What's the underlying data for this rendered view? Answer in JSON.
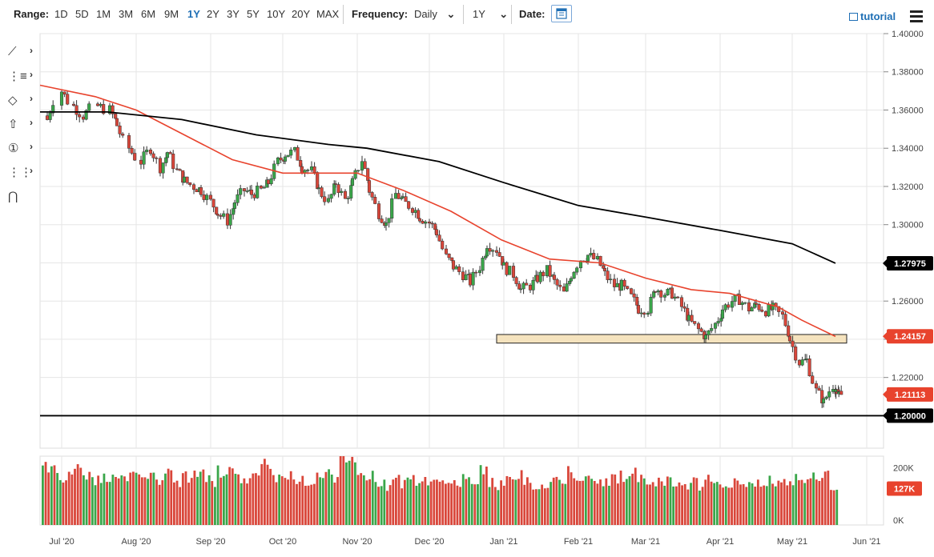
{
  "toolbar": {
    "range_label": "Range:",
    "ranges": [
      "1D",
      "5D",
      "1M",
      "3M",
      "6M",
      "9M",
      "1Y",
      "2Y",
      "3Y",
      "5Y",
      "10Y",
      "20Y",
      "MAX"
    ],
    "active_range": "1Y",
    "frequency_label": "Frequency:",
    "frequency_value": "Daily",
    "period_value": "1Y",
    "date_label": "Date:",
    "tutorial_label": "tutorial"
  },
  "side_tools": [
    "line-tool-icon",
    "fibonacci-tool-icon",
    "shape-tool-icon",
    "arrow-tool-icon",
    "annotation-tool-icon",
    "measure-tool-icon",
    "magnet-tool-icon"
  ],
  "side_tool_glyphs": [
    "⟋",
    "⋮≡",
    "◇",
    "⇧",
    "①",
    "⋮⋮",
    "⋂"
  ],
  "chart_data": {
    "type": "candlestick",
    "price_axis": {
      "ticks": [
        "1.40000",
        "1.38000",
        "1.36000",
        "1.34000",
        "1.32000",
        "1.30000",
        "1.28000",
        "1.26000",
        "1.24000",
        "1.22000",
        "1.20000"
      ],
      "tick_values": [
        1.4,
        1.38,
        1.36,
        1.34,
        1.32,
        1.3,
        1.28,
        1.26,
        1.24,
        1.22,
        1.2
      ],
      "range": [
        1.183,
        1.4
      ]
    },
    "date_axis": {
      "labels": [
        "Jul '20",
        "Aug '20",
        "Sep '20",
        "Oct '20",
        "Nov '20",
        "Dec '20",
        "Jan '21",
        "Feb '21",
        "Mar '21",
        "Apr '21",
        "May '21",
        "Jun '21"
      ],
      "range": [
        "2020-06-22",
        "2021-06-08"
      ]
    },
    "price_tags": [
      {
        "text": "1.27975",
        "value": 1.27975,
        "color": "#000000"
      },
      {
        "text": "1.24157",
        "value": 1.24157,
        "color": "#e8432d"
      },
      {
        "text": "1.21113",
        "value": 1.21113,
        "color": "#e8432d"
      },
      {
        "text": "1.20000",
        "value": 1.2,
        "color": "#000000"
      }
    ],
    "horizontal_line": 1.2,
    "support_zone": {
      "from_date": "2020-12-29",
      "to_date": "2021-05-19",
      "low": 1.238,
      "high": 1.2425,
      "color": "#f5e3be"
    },
    "closes": [
      {
        "date": "2020-06-25",
        "close": 1.355
      },
      {
        "date": "2020-07-01",
        "close": 1.37
      },
      {
        "date": "2020-07-06",
        "close": 1.362
      },
      {
        "date": "2020-07-10",
        "close": 1.357
      },
      {
        "date": "2020-07-16",
        "close": 1.362
      },
      {
        "date": "2020-07-21",
        "close": 1.36
      },
      {
        "date": "2020-07-24",
        "close": 1.352
      },
      {
        "date": "2020-07-29",
        "close": 1.34
      },
      {
        "date": "2020-08-03",
        "close": 1.333
      },
      {
        "date": "2020-08-07",
        "close": 1.34
      },
      {
        "date": "2020-08-11",
        "close": 1.33
      },
      {
        "date": "2020-08-14",
        "close": 1.338
      },
      {
        "date": "2020-08-18",
        "close": 1.328
      },
      {
        "date": "2020-08-21",
        "close": 1.323
      },
      {
        "date": "2020-08-25",
        "close": 1.32
      },
      {
        "date": "2020-08-28",
        "close": 1.318
      },
      {
        "date": "2020-09-01",
        "close": 1.312
      },
      {
        "date": "2020-09-04",
        "close": 1.306
      },
      {
        "date": "2020-09-08",
        "close": 1.302
      },
      {
        "date": "2020-09-11",
        "close": 1.312
      },
      {
        "date": "2020-09-15",
        "close": 1.318
      },
      {
        "date": "2020-09-18",
        "close": 1.316
      },
      {
        "date": "2020-09-22",
        "close": 1.318
      },
      {
        "date": "2020-09-25",
        "close": 1.322
      },
      {
        "date": "2020-09-29",
        "close": 1.333
      },
      {
        "date": "2020-10-02",
        "close": 1.337
      },
      {
        "date": "2020-10-06",
        "close": 1.338
      },
      {
        "date": "2020-10-09",
        "close": 1.33
      },
      {
        "date": "2020-10-13",
        "close": 1.328
      },
      {
        "date": "2020-10-16",
        "close": 1.318
      },
      {
        "date": "2020-10-20",
        "close": 1.312
      },
      {
        "date": "2020-10-23",
        "close": 1.322
      },
      {
        "date": "2020-10-27",
        "close": 1.313
      },
      {
        "date": "2020-10-30",
        "close": 1.322
      },
      {
        "date": "2020-11-03",
        "close": 1.334
      },
      {
        "date": "2020-11-06",
        "close": 1.318
      },
      {
        "date": "2020-11-10",
        "close": 1.306
      },
      {
        "date": "2020-11-13",
        "close": 1.3
      },
      {
        "date": "2020-11-17",
        "close": 1.316
      },
      {
        "date": "2020-11-20",
        "close": 1.312
      },
      {
        "date": "2020-11-24",
        "close": 1.309
      },
      {
        "date": "2020-11-27",
        "close": 1.304
      },
      {
        "date": "2020-12-01",
        "close": 1.301
      },
      {
        "date": "2020-12-04",
        "close": 1.296
      },
      {
        "date": "2020-12-08",
        "close": 1.283
      },
      {
        "date": "2020-12-11",
        "close": 1.278
      },
      {
        "date": "2020-12-15",
        "close": 1.274
      },
      {
        "date": "2020-12-18",
        "close": 1.27
      },
      {
        "date": "2020-12-22",
        "close": 1.278
      },
      {
        "date": "2020-12-25",
        "close": 1.29
      },
      {
        "date": "2020-12-29",
        "close": 1.287
      },
      {
        "date": "2021-01-01",
        "close": 1.278
      },
      {
        "date": "2021-01-05",
        "close": 1.274
      },
      {
        "date": "2021-01-08",
        "close": 1.266
      },
      {
        "date": "2021-01-12",
        "close": 1.268
      },
      {
        "date": "2021-01-15",
        "close": 1.272
      },
      {
        "date": "2021-01-19",
        "close": 1.276
      },
      {
        "date": "2021-01-22",
        "close": 1.27
      },
      {
        "date": "2021-01-26",
        "close": 1.264
      },
      {
        "date": "2021-01-29",
        "close": 1.274
      },
      {
        "date": "2021-02-02",
        "close": 1.282
      },
      {
        "date": "2021-02-05",
        "close": 1.284
      },
      {
        "date": "2021-02-09",
        "close": 1.281
      },
      {
        "date": "2021-02-12",
        "close": 1.274
      },
      {
        "date": "2021-02-16",
        "close": 1.268
      },
      {
        "date": "2021-02-19",
        "close": 1.268
      },
      {
        "date": "2021-02-23",
        "close": 1.262
      },
      {
        "date": "2021-02-26",
        "close": 1.256
      },
      {
        "date": "2021-03-02",
        "close": 1.256
      },
      {
        "date": "2021-03-05",
        "close": 1.267
      },
      {
        "date": "2021-03-09",
        "close": 1.264
      },
      {
        "date": "2021-03-12",
        "close": 1.264
      },
      {
        "date": "2021-03-16",
        "close": 1.257
      },
      {
        "date": "2021-03-19",
        "close": 1.25
      },
      {
        "date": "2021-03-23",
        "close": 1.245
      },
      {
        "date": "2021-03-26",
        "close": 1.241
      },
      {
        "date": "2021-03-30",
        "close": 1.248
      },
      {
        "date": "2021-04-02",
        "close": 1.256
      },
      {
        "date": "2021-04-06",
        "close": 1.26
      },
      {
        "date": "2021-04-09",
        "close": 1.261
      },
      {
        "date": "2021-04-13",
        "close": 1.256
      },
      {
        "date": "2021-04-16",
        "close": 1.258
      },
      {
        "date": "2021-04-20",
        "close": 1.255
      },
      {
        "date": "2021-04-23",
        "close": 1.256
      },
      {
        "date": "2021-04-27",
        "close": 1.252
      },
      {
        "date": "2021-04-30",
        "close": 1.24
      },
      {
        "date": "2021-05-04",
        "close": 1.228
      },
      {
        "date": "2021-05-07",
        "close": 1.229
      },
      {
        "date": "2021-05-11",
        "close": 1.213
      },
      {
        "date": "2021-05-14",
        "close": 1.207
      },
      {
        "date": "2021-05-18",
        "close": 1.216
      },
      {
        "date": "2021-05-19",
        "close": 1.211
      }
    ],
    "series": [
      {
        "type": "line",
        "color": "#e8432d",
        "points": [
          {
            "date": "2020-06-22",
            "value": 1.373
          },
          {
            "date": "2020-07-15",
            "value": 1.367
          },
          {
            "date": "2020-08-01",
            "value": 1.36
          },
          {
            "date": "2020-08-21",
            "value": 1.347
          },
          {
            "date": "2020-09-10",
            "value": 1.334
          },
          {
            "date": "2020-10-01",
            "value": 1.327
          },
          {
            "date": "2020-10-20",
            "value": 1.327
          },
          {
            "date": "2020-11-01",
            "value": 1.327
          },
          {
            "date": "2020-11-20",
            "value": 1.318
          },
          {
            "date": "2020-12-10",
            "value": 1.307
          },
          {
            "date": "2020-12-31",
            "value": 1.292
          },
          {
            "date": "2021-01-20",
            "value": 1.282
          },
          {
            "date": "2021-02-10",
            "value": 1.28
          },
          {
            "date": "2021-03-01",
            "value": 1.272
          },
          {
            "date": "2021-03-20",
            "value": 1.266
          },
          {
            "date": "2021-04-05",
            "value": 1.264
          },
          {
            "date": "2021-04-25",
            "value": 1.257
          },
          {
            "date": "2021-05-05",
            "value": 1.25
          },
          {
            "date": "2021-05-19",
            "value": 1.2415
          }
        ]
      },
      {
        "type": "line",
        "color": "#000000",
        "points": [
          {
            "date": "2020-06-22",
            "value": 1.359
          },
          {
            "date": "2020-07-20",
            "value": 1.359
          },
          {
            "date": "2020-08-20",
            "value": 1.355
          },
          {
            "date": "2020-09-20",
            "value": 1.347
          },
          {
            "date": "2020-10-20",
            "value": 1.342
          },
          {
            "date": "2020-11-05",
            "value": 1.34
          },
          {
            "date": "2020-12-05",
            "value": 1.333
          },
          {
            "date": "2021-01-01",
            "value": 1.322
          },
          {
            "date": "2021-02-01",
            "value": 1.31
          },
          {
            "date": "2021-03-01",
            "value": 1.304
          },
          {
            "date": "2021-04-01",
            "value": 1.297
          },
          {
            "date": "2021-05-01",
            "value": 1.29
          },
          {
            "date": "2021-05-19",
            "value": 1.2798
          }
        ]
      }
    ],
    "volume": {
      "axis_ticks": [
        "200K",
        "0K"
      ],
      "tick_values": [
        200000,
        0
      ],
      "range": [
        0,
        240000
      ],
      "last_tag": {
        "text": "127K",
        "value": 127000,
        "color": "#e8432d"
      },
      "values": [
        210000,
        200000,
        170000,
        185000,
        190000,
        165000,
        150000,
        175000,
        190000,
        160000,
        170000,
        155000,
        180000,
        160000,
        175000,
        150000,
        165000,
        180000,
        170000,
        155000,
        185000,
        190000,
        165000,
        150000,
        160000,
        210000,
        175000,
        160000,
        170000,
        150000,
        155000,
        165000,
        180000,
        160000,
        230000,
        220000,
        200000,
        175000,
        150000,
        140000,
        155000,
        145000,
        160000,
        150000,
        140000,
        145000,
        135000,
        150000,
        155000,
        140000,
        195000,
        150000,
        140000,
        155000,
        170000,
        150000,
        145000,
        140000,
        160000,
        165000,
        180000,
        170000,
        150000,
        145000,
        155000,
        160000,
        175000,
        200000,
        165000,
        150000,
        155000,
        160000,
        140000,
        145000,
        150000,
        140000,
        155000,
        150000,
        140000,
        145000,
        150000,
        145000,
        140000,
        150000,
        155000,
        145000,
        175000,
        150000,
        160000,
        185000,
        127000
      ]
    }
  }
}
